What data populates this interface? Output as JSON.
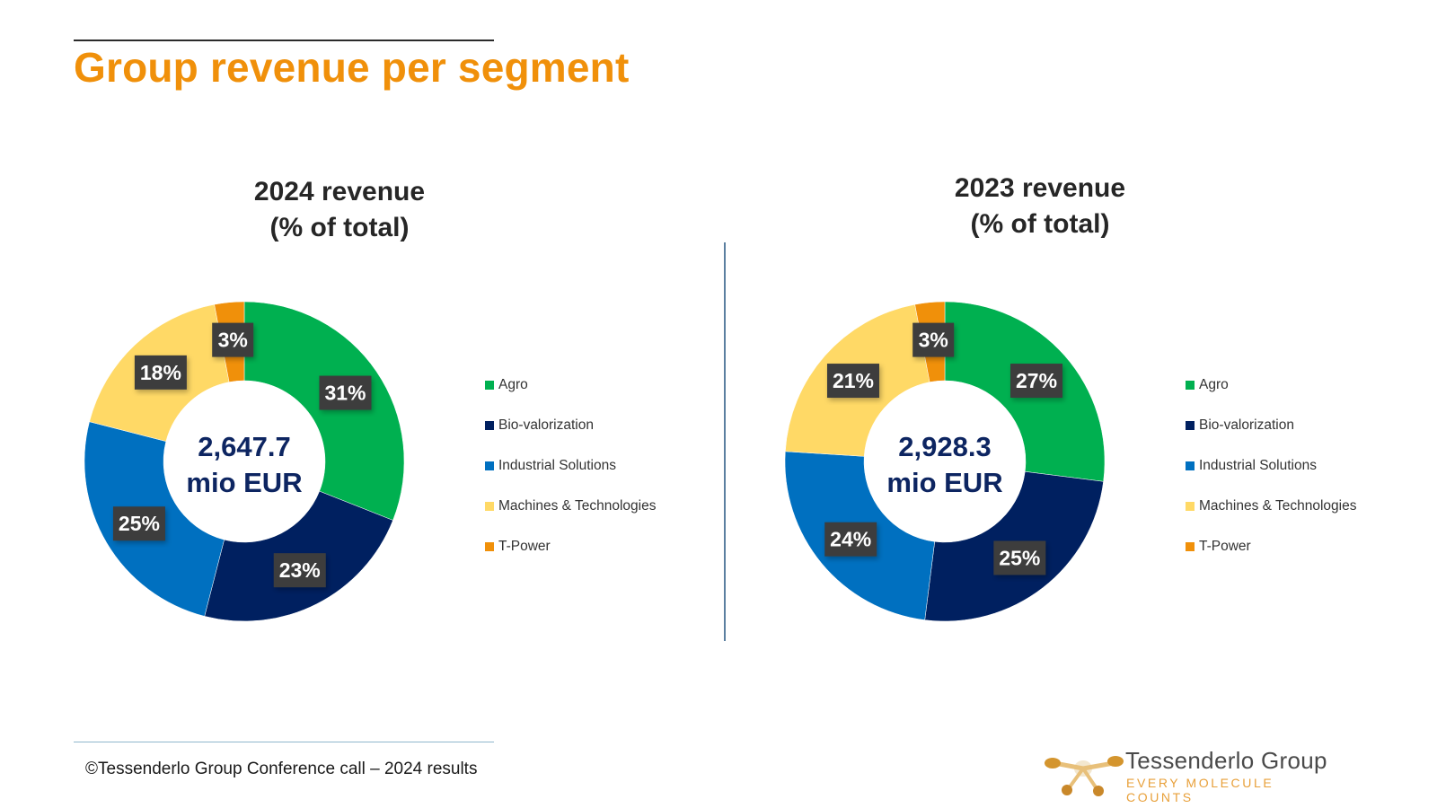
{
  "slide": {
    "title": "Group revenue per segment",
    "footer": "©Tessenderlo Group Conference call – 2024 results"
  },
  "logo": {
    "name": "Tessenderlo Group",
    "tagline": "EVERY MOLECULE COUNTS",
    "icon": "molecule-logo-icon"
  },
  "colors": {
    "accent": "#f0900a",
    "label_bg": "#3d3d3d",
    "center_text": "#0d2561"
  },
  "chart_data": [
    {
      "type": "pie",
      "variant": "donut",
      "title_line1": "2024 revenue",
      "title_line2": "(% of total)",
      "center_line1": "2,647.7",
      "center_line2": "mio EUR",
      "legend_placement": "right",
      "categories": [
        "Agro",
        "Bio-valorization",
        "Industrial Solutions",
        "Machines & Technologies",
        "T-Power"
      ],
      "values": [
        31,
        23,
        25,
        18,
        3
      ],
      "labels": [
        "31%",
        "23%",
        "25%",
        "18%",
        "3%"
      ],
      "colors": [
        "#00b050",
        "#002060",
        "#0070c0",
        "#ffd966",
        "#f0900a"
      ]
    },
    {
      "type": "pie",
      "variant": "donut",
      "title_line1": "2023 revenue",
      "title_line2": "(% of total)",
      "center_line1": "2,928.3",
      "center_line2": "mio EUR",
      "legend_placement": "right",
      "categories": [
        "Agro",
        "Bio-valorization",
        "Industrial Solutions",
        "Machines & Technologies",
        "T-Power"
      ],
      "values": [
        27,
        25,
        24,
        21,
        3
      ],
      "labels": [
        "27%",
        "25%",
        "24%",
        "21%",
        "3%"
      ],
      "colors": [
        "#00b050",
        "#002060",
        "#0070c0",
        "#ffd966",
        "#f0900a"
      ]
    }
  ]
}
